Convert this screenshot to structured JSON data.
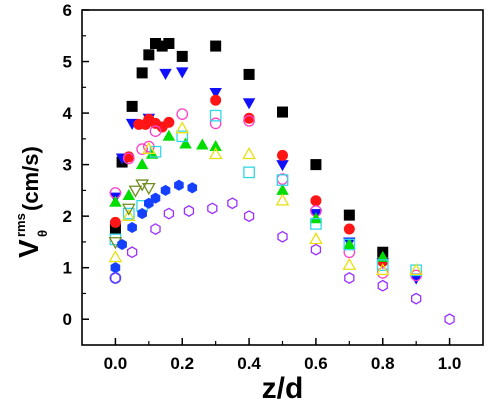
{
  "chart_data": {
    "type": "scatter",
    "title": "",
    "xlabel": "z/d",
    "ylabel": {
      "main": "V",
      "sub": "θ",
      "sup": "rms",
      "unit": "(cm/s)"
    },
    "xlim": [
      -0.1,
      1.1
    ],
    "ylim": [
      -0.5,
      6
    ],
    "xticks": [
      0.0,
      0.2,
      0.4,
      0.6,
      0.8,
      1.0
    ],
    "xtick_labels": [
      "0.0",
      "0.2",
      "0.4",
      "0.6",
      "0.8",
      "1.0"
    ],
    "yticks": [
      0,
      1,
      2,
      3,
      4,
      5,
      6
    ],
    "ytick_labels": [
      "0",
      "1",
      "2",
      "3",
      "4",
      "5",
      "6"
    ],
    "grid": false,
    "legend": "none",
    "series": [
      {
        "marker": "square",
        "filled": true,
        "color": "#000000",
        "points": [
          [
            0.0,
            1.75
          ],
          [
            0.02,
            3.05
          ],
          [
            0.05,
            4.13
          ],
          [
            0.08,
            4.78
          ],
          [
            0.1,
            5.13
          ],
          [
            0.12,
            5.35
          ],
          [
            0.14,
            5.3
          ],
          [
            0.16,
            5.35
          ],
          [
            0.2,
            5.1
          ],
          [
            0.3,
            5.3
          ],
          [
            0.4,
            4.75
          ],
          [
            0.5,
            4.02
          ],
          [
            0.6,
            3.0
          ],
          [
            0.7,
            2.02
          ],
          [
            0.8,
            1.3
          ]
        ]
      },
      {
        "marker": "triangle-down",
        "filled": true,
        "color": "#1010ff",
        "points": [
          [
            0.0,
            2.37
          ],
          [
            0.02,
            3.13
          ],
          [
            0.05,
            3.8
          ],
          [
            0.1,
            3.9
          ],
          [
            0.15,
            4.77
          ],
          [
            0.2,
            4.8
          ],
          [
            0.3,
            4.4
          ],
          [
            0.4,
            4.2
          ],
          [
            0.5,
            3.0
          ],
          [
            0.6,
            2.05
          ],
          [
            0.7,
            1.5
          ],
          [
            0.8,
            1.1
          ],
          [
            0.9,
            0.8
          ]
        ]
      },
      {
        "marker": "circle",
        "filled": true,
        "color": "#ff1515",
        "points": [
          [
            0.0,
            1.88
          ],
          [
            0.04,
            3.15
          ],
          [
            0.07,
            3.78
          ],
          [
            0.09,
            3.78
          ],
          [
            0.1,
            3.88
          ],
          [
            0.12,
            3.8
          ],
          [
            0.14,
            3.73
          ],
          [
            0.16,
            3.82
          ],
          [
            0.3,
            4.25
          ],
          [
            0.4,
            3.9
          ],
          [
            0.5,
            3.18
          ],
          [
            0.6,
            2.3
          ],
          [
            0.7,
            1.75
          ],
          [
            0.8,
            1.12
          ]
        ]
      },
      {
        "marker": "circle",
        "filled": false,
        "color": "#ff40c8",
        "points": [
          [
            0.0,
            2.45
          ],
          [
            0.04,
            3.12
          ],
          [
            0.08,
            3.3
          ],
          [
            0.1,
            3.35
          ],
          [
            0.12,
            3.65
          ],
          [
            0.2,
            3.98
          ],
          [
            0.3,
            3.8
          ],
          [
            0.4,
            3.85
          ],
          [
            0.5,
            2.72
          ],
          [
            0.6,
            2.1
          ],
          [
            0.7,
            1.3
          ],
          [
            0.8,
            0.9
          ],
          [
            0.9,
            0.85
          ]
        ]
      },
      {
        "marker": "triangle-up",
        "filled": true,
        "color": "#00dd00",
        "points": [
          [
            0.0,
            2.27
          ],
          [
            0.04,
            2.4
          ],
          [
            0.08,
            3.0
          ],
          [
            0.11,
            3.2
          ],
          [
            0.16,
            3.55
          ],
          [
            0.21,
            3.4
          ],
          [
            0.26,
            3.38
          ],
          [
            0.3,
            3.35
          ],
          [
            0.5,
            2.5
          ],
          [
            0.6,
            1.95
          ],
          [
            0.7,
            1.45
          ],
          [
            0.8,
            1.2
          ]
        ]
      },
      {
        "marker": "square",
        "filled": false,
        "color": "#33d6e8",
        "points": [
          [
            0.0,
            1.55
          ],
          [
            0.04,
            2.05
          ],
          [
            0.08,
            2.2
          ],
          [
            0.12,
            3.25
          ],
          [
            0.2,
            3.55
          ],
          [
            0.3,
            3.95
          ],
          [
            0.4,
            2.85
          ],
          [
            0.5,
            2.7
          ],
          [
            0.6,
            1.85
          ],
          [
            0.7,
            1.45
          ],
          [
            0.8,
            1.05
          ],
          [
            0.9,
            0.95
          ]
        ]
      },
      {
        "marker": "triangle-up",
        "filled": false,
        "color": "#e8e010",
        "points": [
          [
            0.0,
            1.2
          ],
          [
            0.04,
            2.0
          ],
          [
            0.1,
            3.3
          ],
          [
            0.2,
            3.7
          ],
          [
            0.3,
            3.2
          ],
          [
            0.4,
            3.2
          ],
          [
            0.5,
            2.3
          ],
          [
            0.6,
            1.55
          ],
          [
            0.7,
            1.05
          ],
          [
            0.8,
            0.95
          ],
          [
            0.9,
            0.95
          ]
        ]
      },
      {
        "marker": "triangle-down",
        "filled": false,
        "color": "#6f8c1e",
        "points": [
          [
            0.0,
            1.5
          ],
          [
            0.04,
            2.15
          ],
          [
            0.06,
            2.5
          ],
          [
            0.08,
            2.62
          ],
          [
            0.1,
            2.55
          ]
        ]
      },
      {
        "marker": "hexagon",
        "filled": true,
        "color": "#1540ff",
        "points": [
          [
            0.0,
            1.0
          ],
          [
            0.02,
            1.45
          ],
          [
            0.05,
            1.78
          ],
          [
            0.08,
            2.05
          ],
          [
            0.1,
            2.25
          ],
          [
            0.12,
            2.35
          ],
          [
            0.15,
            2.5
          ],
          [
            0.19,
            2.6
          ],
          [
            0.23,
            2.55
          ]
        ]
      },
      {
        "marker": "hexagon",
        "filled": false,
        "color": "#9b30ff",
        "points": [
          [
            0.0,
            0.8
          ],
          [
            0.05,
            1.3
          ],
          [
            0.12,
            1.75
          ],
          [
            0.16,
            2.05
          ],
          [
            0.22,
            2.1
          ],
          [
            0.29,
            2.15
          ],
          [
            0.35,
            2.25
          ],
          [
            0.4,
            2.0
          ],
          [
            0.5,
            1.6
          ],
          [
            0.6,
            1.35
          ],
          [
            0.7,
            0.8
          ],
          [
            0.8,
            0.65
          ],
          [
            0.9,
            0.4
          ],
          [
            1.0,
            0.0
          ]
        ]
      },
      {
        "marker": "circle",
        "filled": false,
        "color": "#4a4aff",
        "points": [
          [
            0.0,
            0.8
          ]
        ]
      }
    ]
  }
}
